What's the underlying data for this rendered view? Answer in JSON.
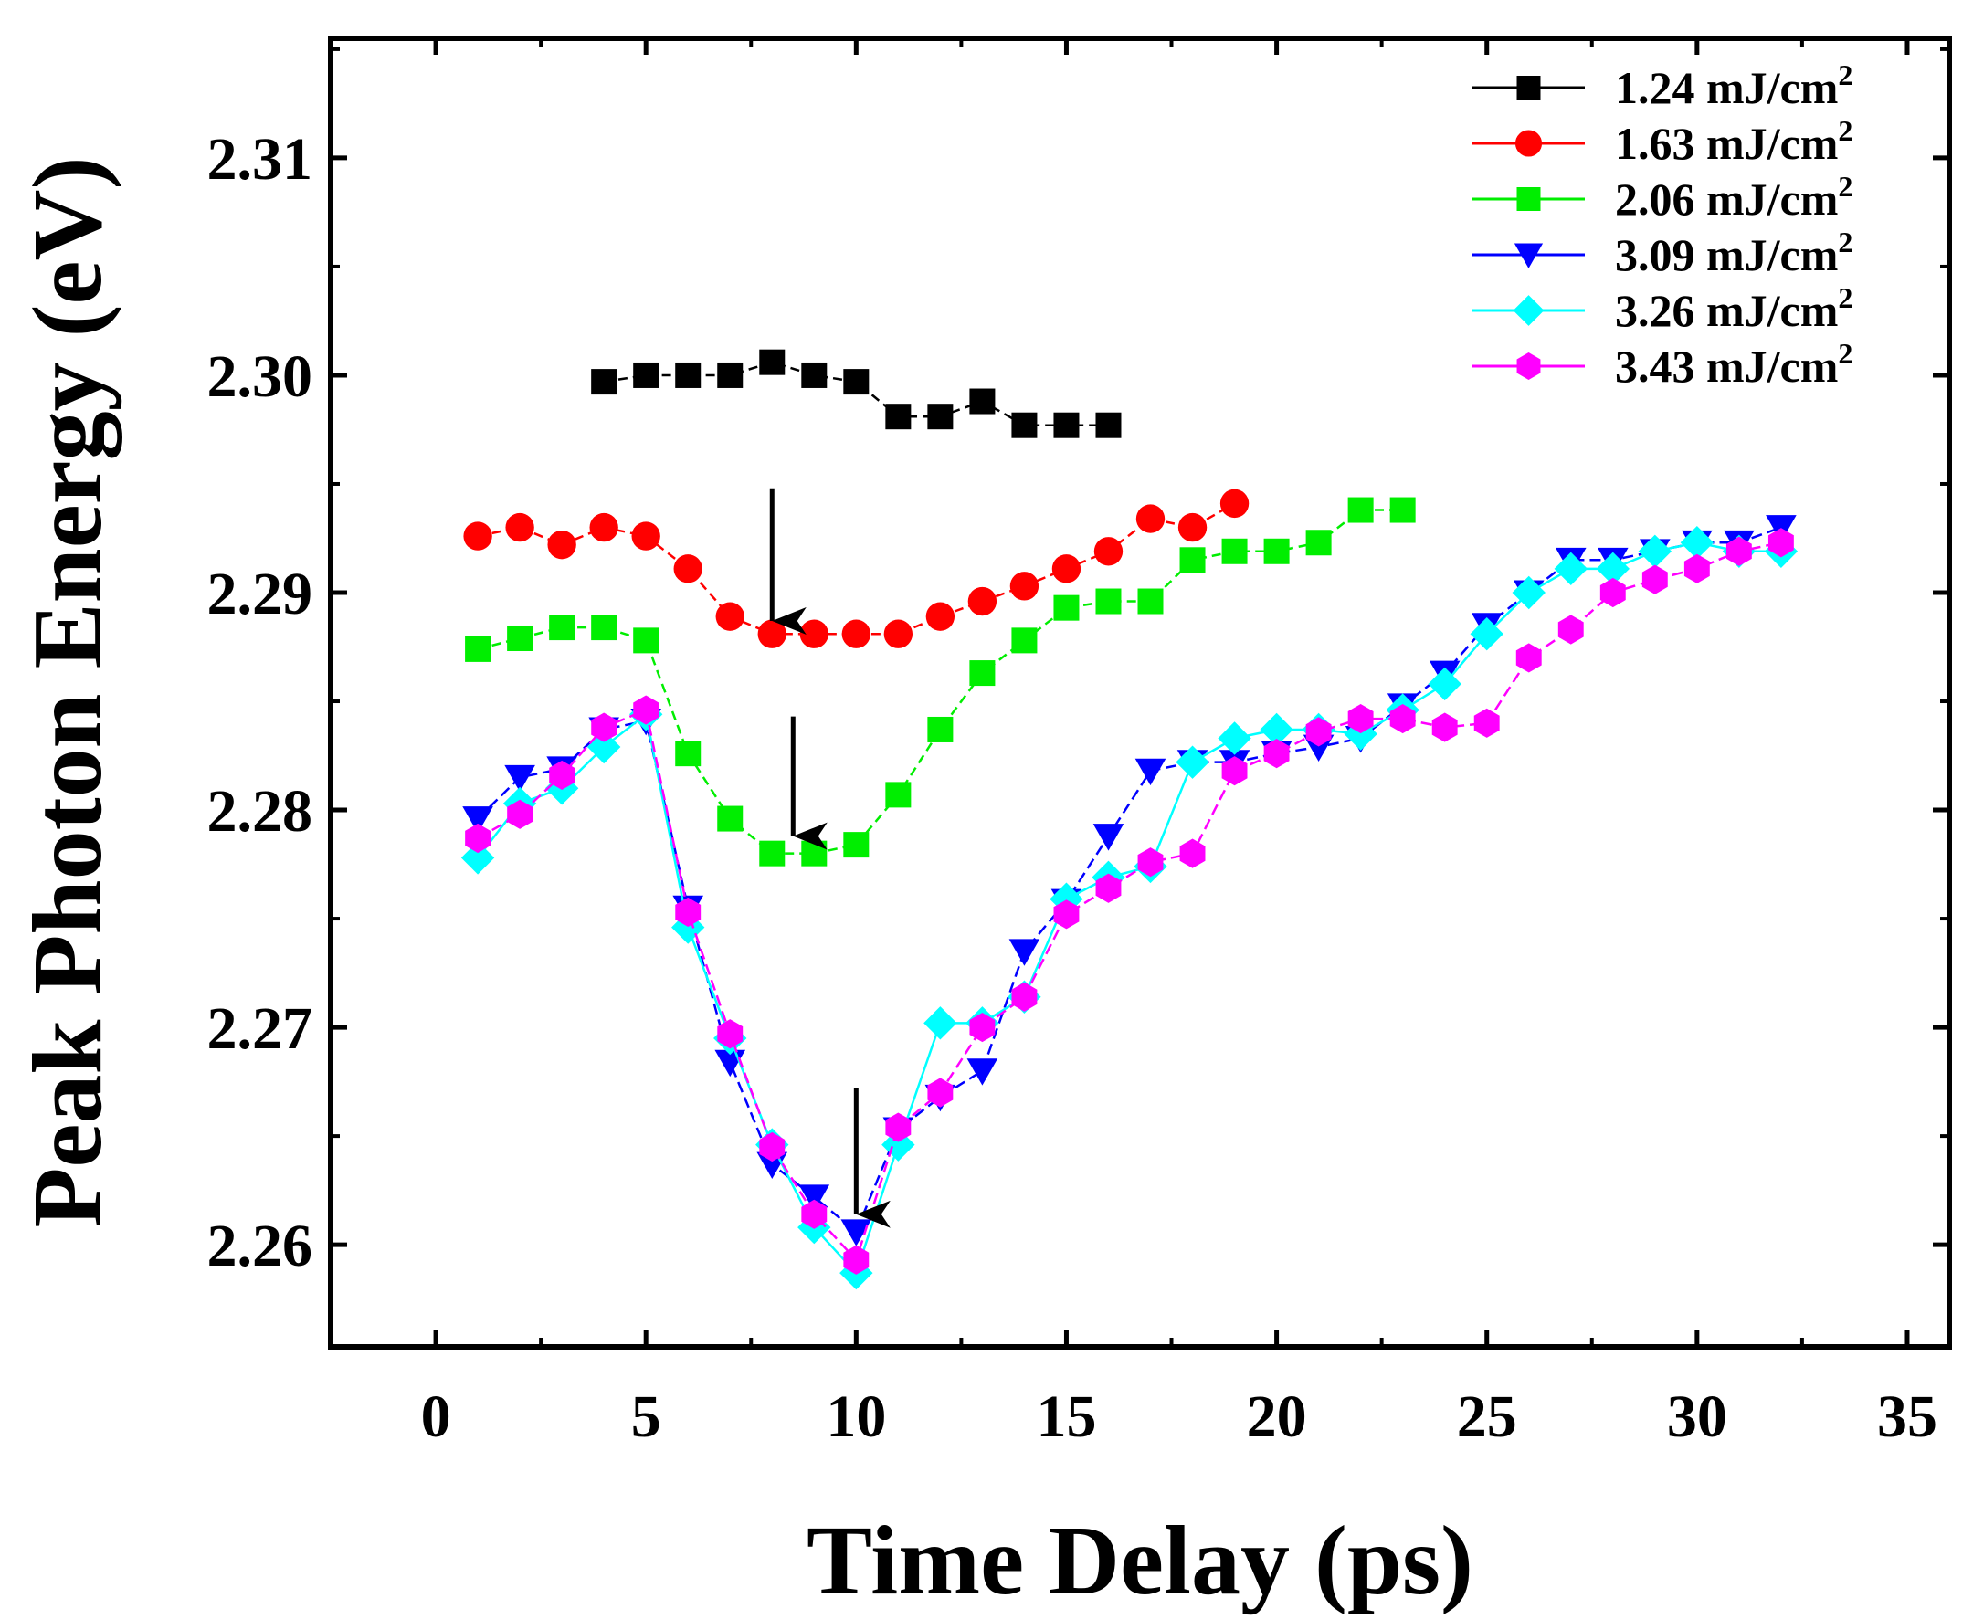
{
  "chart_data": {
    "type": "scatter",
    "title": "",
    "xlabel": "Time Delay (ps)",
    "ylabel": "Peak Photon Energy (eV)",
    "xlim": [
      -2.5,
      36
    ],
    "ylim": [
      2.2553,
      2.3155
    ],
    "xticks": [
      0,
      5,
      10,
      15,
      20,
      25,
      30,
      35
    ],
    "xtick_labels": [
      "0",
      "5",
      "10",
      "15",
      "20",
      "25",
      "30",
      "35"
    ],
    "yticks": [
      2.26,
      2.27,
      2.28,
      2.29,
      2.3,
      2.31
    ],
    "ytick_labels": [
      "2.26",
      "2.27",
      "2.28",
      "2.29",
      "2.30",
      "2.31"
    ],
    "legend_position": "top-right",
    "series": [
      {
        "name": "1.24 mJ/cm2",
        "label_main": "1.24 mJ/cm",
        "label_sup": "2",
        "color": "#000000",
        "marker": "square",
        "dash": "10,6",
        "x": [
          4,
          5,
          6,
          7,
          8,
          9,
          10,
          11,
          12,
          13,
          14,
          15,
          16
        ],
        "y": [
          2.2997,
          2.3,
          2.3,
          2.3,
          2.3006,
          2.3,
          2.2997,
          2.2981,
          2.2981,
          2.2988,
          2.2977,
          2.2977,
          2.2977
        ]
      },
      {
        "name": "1.63 mJ/cm2",
        "label_main": "1.63 mJ/cm",
        "label_sup": "2",
        "color": "#ff0000",
        "marker": "circle",
        "dash": "10,6",
        "x": [
          1,
          2,
          3,
          4,
          5,
          6,
          7,
          8,
          9,
          10,
          11,
          12,
          13,
          14,
          15,
          16,
          17,
          18,
          19
        ],
        "y": [
          2.2926,
          2.293,
          2.2922,
          2.293,
          2.2926,
          2.2911,
          2.2889,
          2.2881,
          2.2881,
          2.2881,
          2.2881,
          2.2889,
          2.2896,
          2.2903,
          2.2911,
          2.2919,
          2.2934,
          2.293,
          2.2941
        ]
      },
      {
        "name": "2.06 mJ/cm2",
        "label_main": "2.06 mJ/cm",
        "label_sup": "2",
        "color": "#00ee00",
        "marker": "square",
        "dash": "10,6",
        "x": [
          1,
          2,
          3,
          4,
          5,
          6,
          7,
          8,
          9,
          10,
          11,
          12,
          13,
          14,
          15,
          16,
          17,
          18,
          19,
          20,
          21,
          22,
          23
        ],
        "y": [
          2.2874,
          2.2879,
          2.2884,
          2.2884,
          2.2878,
          2.2826,
          2.2796,
          2.278,
          2.278,
          2.2784,
          2.2807,
          2.2837,
          2.2863,
          2.2878,
          2.2893,
          2.2896,
          2.2896,
          2.2915,
          2.2919,
          2.2919,
          2.2923,
          2.2938,
          2.2938
        ]
      },
      {
        "name": "3.09 mJ/cm2",
        "label_main": "3.09 mJ/cm",
        "label_sup": "2",
        "color": "#0000ff",
        "marker": "triangle-down",
        "dash": "12,6",
        "x": [
          1,
          2,
          3,
          4,
          5,
          6,
          7,
          8,
          9,
          10,
          11,
          12,
          13,
          14,
          15,
          16,
          17,
          18,
          19,
          20,
          21,
          22,
          23,
          24,
          25,
          26,
          27,
          28,
          29,
          30,
          31,
          32
        ],
        "y": [
          2.2796,
          2.2815,
          2.2819,
          2.2837,
          2.2841,
          2.2755,
          2.2684,
          2.2637,
          2.2622,
          2.2606,
          2.2653,
          2.2668,
          2.268,
          2.2735,
          2.2758,
          2.2788,
          2.2818,
          2.2822,
          2.2822,
          2.2826,
          2.2829,
          2.2833,
          2.2848,
          2.2863,
          2.2885,
          2.29,
          2.2915,
          2.2915,
          2.2919,
          2.2923,
          2.2923,
          2.293
        ]
      },
      {
        "name": "3.26 mJ/cm2",
        "label_main": "3.26 mJ/cm",
        "label_sup": "2",
        "color": "#00ffff",
        "marker": "diamond",
        "dash": "",
        "x": [
          1,
          2,
          3,
          4,
          5,
          6,
          7,
          8,
          9,
          10,
          11,
          12,
          13,
          14,
          15,
          16,
          17,
          18,
          19,
          20,
          21,
          22,
          23,
          24,
          25,
          26,
          27,
          28,
          29,
          30,
          31,
          32
        ],
        "y": [
          2.2778,
          2.2803,
          2.281,
          2.2829,
          2.2844,
          2.2746,
          2.2695,
          2.2646,
          2.2608,
          2.2587,
          2.2646,
          2.2702,
          2.2702,
          2.2714,
          2.2759,
          2.2769,
          2.2774,
          2.2822,
          2.2833,
          2.2837,
          2.2837,
          2.2835,
          2.2846,
          2.2858,
          2.2881,
          2.29,
          2.2911,
          2.2911,
          2.2919,
          2.2923,
          2.2919,
          2.2919
        ]
      },
      {
        "name": "3.43 mJ/cm2",
        "label_main": "3.43 mJ/cm",
        "label_sup": "2",
        "color": "#ff00ff",
        "marker": "hexagon",
        "dash": "12,6",
        "x": [
          1,
          2,
          3,
          4,
          5,
          6,
          7,
          8,
          9,
          10,
          11,
          12,
          13,
          14,
          15,
          16,
          17,
          18,
          19,
          20,
          21,
          22,
          23,
          24,
          25,
          26,
          27,
          28,
          29,
          30,
          31,
          32
        ],
        "y": [
          2.2787,
          2.2798,
          2.2816,
          2.2838,
          2.2846,
          2.2753,
          2.2697,
          2.2645,
          2.2614,
          2.2593,
          2.2654,
          2.267,
          2.27,
          2.2714,
          2.2752,
          2.2764,
          2.2776,
          2.278,
          2.2818,
          2.2826,
          2.2836,
          2.2842,
          2.2842,
          2.2838,
          2.284,
          2.287,
          2.2883,
          2.29,
          2.2906,
          2.2911,
          2.2919,
          2.2923
        ]
      }
    ],
    "annotations": [
      {
        "type": "arrow",
        "x": 8.0,
        "y_start": 2.2948,
        "y_end": 2.2887
      },
      {
        "type": "arrow",
        "x": 8.5,
        "y_start": 2.2843,
        "y_end": 2.2788
      },
      {
        "type": "arrow",
        "x": 10.0,
        "y_start": 2.2672,
        "y_end": 2.2614
      }
    ]
  }
}
